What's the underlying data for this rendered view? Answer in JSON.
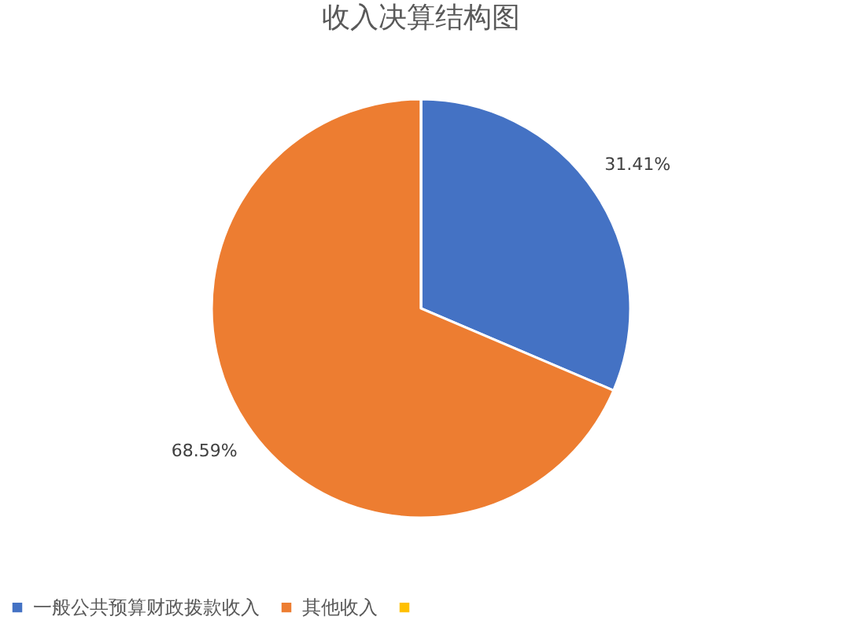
{
  "chart_data": {
    "type": "pie",
    "title": "收入决算结构图",
    "categories": [
      "一般公共预算财政拨款收入",
      "其他收入",
      null
    ],
    "values": [
      31.41,
      68.59,
      0
    ],
    "colors": [
      "#4472c4",
      "#ed7d31",
      "#ffc000"
    ],
    "value_labels": [
      "31.41%",
      "68.59%",
      null
    ],
    "legend": "bottom"
  }
}
